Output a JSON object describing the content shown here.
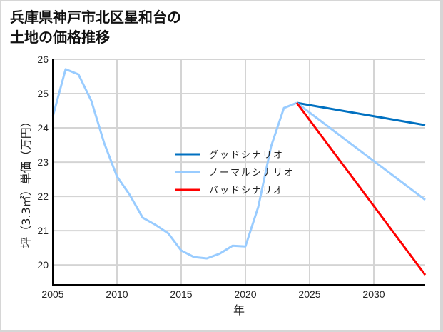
{
  "chart_data": {
    "type": "line",
    "title": "兵庫県神戸市北区星和台の土地の価格推移",
    "title_lines": [
      "兵庫県神戸市北区星和台の",
      "土地の価格推移"
    ],
    "xlabel": "年",
    "ylabel": "坪（3.3㎡）単価（万円）",
    "xlim": [
      2005,
      2034
    ],
    "ylim": [
      19.42,
      26
    ],
    "xticks": [
      2005,
      2010,
      2015,
      2020,
      2025,
      2030
    ],
    "yticks": [
      20,
      21,
      22,
      23,
      24,
      25,
      26
    ],
    "grid": true,
    "legend_position": "center",
    "series": [
      {
        "name": "ノーマルシナリオ (履歴)",
        "color": "#99ccff",
        "x": [
          2005,
          2006,
          2007,
          2008,
          2009,
          2010,
          2011,
          2012,
          2013,
          2014,
          2015,
          2016,
          2017,
          2018,
          2019,
          2020,
          2021,
          2022,
          2023,
          2024
        ],
        "y": [
          24.33,
          25.71,
          25.56,
          24.79,
          23.56,
          22.58,
          22.04,
          21.38,
          21.17,
          20.92,
          20.42,
          20.23,
          20.19,
          20.33,
          20.56,
          20.54,
          21.69,
          23.46,
          24.58,
          24.73
        ]
      },
      {
        "name": "グッドシナリオ",
        "color": "#0070c0",
        "x": [
          2024,
          2034
        ],
        "y": [
          24.73,
          24.08
        ]
      },
      {
        "name": "ノーマルシナリオ",
        "color": "#99ccff",
        "x": [
          2024,
          2034
        ],
        "y": [
          24.73,
          21.9
        ]
      },
      {
        "name": "バッドシナリオ",
        "color": "#ff0000",
        "x": [
          2024,
          2034
        ],
        "y": [
          24.73,
          19.71
        ]
      }
    ],
    "legend": [
      {
        "label": "グッドシナリオ",
        "color": "#0070c0"
      },
      {
        "label": "ノーマルシナリオ",
        "color": "#99ccff"
      },
      {
        "label": "バッドシナリオ",
        "color": "#ff0000"
      }
    ]
  }
}
